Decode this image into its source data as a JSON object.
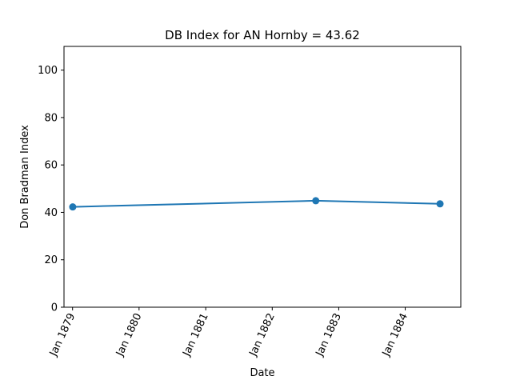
{
  "chart_data": {
    "type": "line",
    "title": "DB Index for AN Hornby = 43.62",
    "xlabel": "Date",
    "ylabel": "Don Bradman Index",
    "ylim": [
      0,
      110
    ],
    "yticks": [
      0,
      20,
      40,
      60,
      80,
      100
    ],
    "xticks": [
      "Jan 1879",
      "Jan 1880",
      "Jan 1881",
      "Jan 1882",
      "Jan 1883",
      "Jan 1884"
    ],
    "xlim": [
      "1878-11-15",
      "1884-11-01"
    ],
    "grid": false,
    "series": [
      {
        "color": "#1f77b4",
        "x": [
          "1879-01-02",
          "1882-08-28",
          "1884-07-10"
        ],
        "values": [
          42.3,
          44.9,
          43.6
        ]
      }
    ]
  }
}
